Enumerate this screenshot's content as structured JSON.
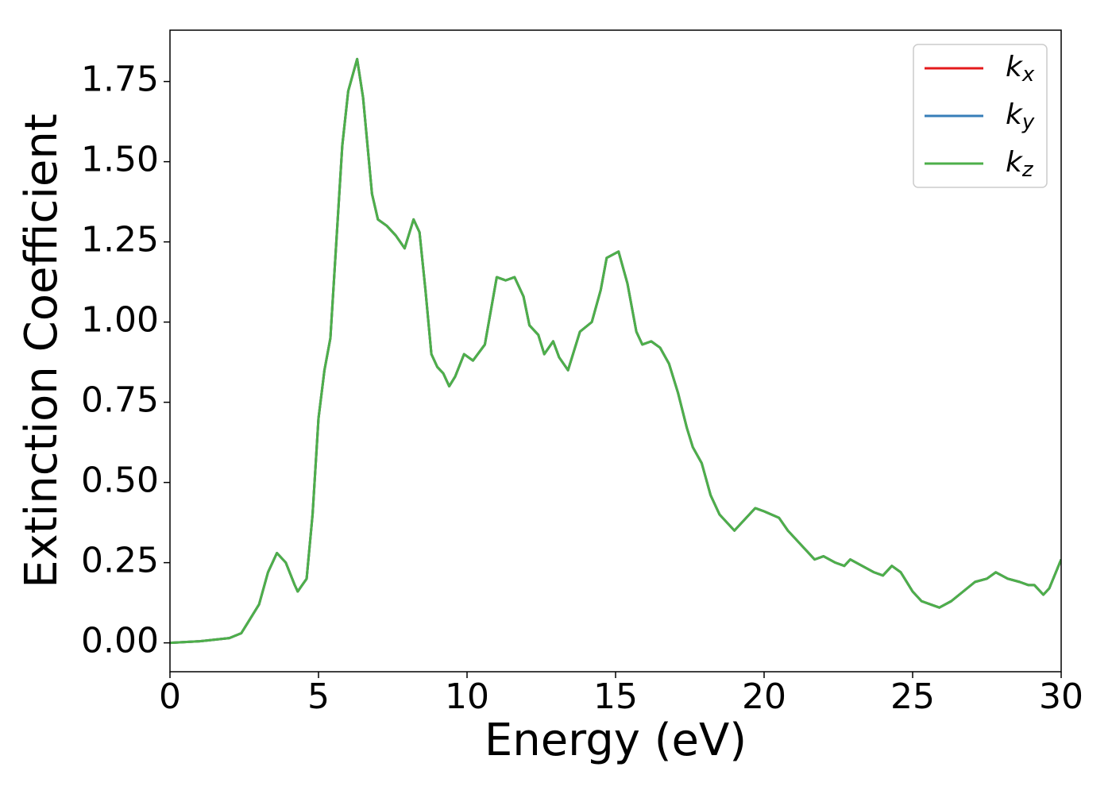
{
  "chart_data": {
    "type": "line",
    "xlabel": "Energy (eV)",
    "ylabel": "Extinction Coefficient",
    "x": [
      0,
      1,
      2,
      2.4,
      2.6,
      3,
      3.3,
      3.6,
      3.9,
      4.2,
      4.3,
      4.6,
      4.8,
      5,
      5.2,
      5.4,
      5.6,
      5.8,
      6.0,
      6.3,
      6.5,
      6.8,
      7.0,
      7.3,
      7.6,
      7.9,
      8.2,
      8.4,
      8.6,
      8.8,
      9.0,
      9.2,
      9.4,
      9.6,
      9.9,
      10.2,
      10.6,
      11.0,
      11.3,
      11.6,
      11.9,
      12.1,
      12.4,
      12.6,
      12.9,
      13.1,
      13.4,
      13.8,
      14.2,
      14.5,
      14.7,
      14.9,
      15.1,
      15.4,
      15.7,
      15.9,
      16.2,
      16.5,
      16.8,
      17.1,
      17.4,
      17.6,
      17.9,
      18.2,
      18.5,
      18.8,
      19.0,
      19.3,
      19.7,
      20.0,
      20.5,
      20.8,
      21.1,
      21.4,
      21.7,
      22.0,
      22.4,
      22.7,
      22.9,
      23.3,
      23.7,
      24.0,
      24.3,
      24.6,
      25.0,
      25.3,
      25.6,
      25.9,
      26.3,
      26.7,
      27.1,
      27.5,
      27.8,
      28.2,
      28.6,
      28.9,
      29.1,
      29.4,
      29.6,
      30.0
    ],
    "series": [
      {
        "name": "kx",
        "color": "#e41a1c",
        "values": [
          0,
          0.005,
          0.015,
          0.03,
          0.06,
          0.12,
          0.22,
          0.28,
          0.25,
          0.18,
          0.16,
          0.2,
          0.4,
          0.7,
          0.85,
          0.95,
          1.25,
          1.55,
          1.72,
          1.82,
          1.7,
          1.4,
          1.32,
          1.3,
          1.27,
          1.23,
          1.32,
          1.28,
          1.1,
          0.9,
          0.86,
          0.84,
          0.8,
          0.83,
          0.9,
          0.88,
          0.93,
          1.14,
          1.13,
          1.14,
          1.08,
          0.99,
          0.96,
          0.9,
          0.94,
          0.89,
          0.85,
          0.97,
          1.0,
          1.1,
          1.2,
          1.21,
          1.22,
          1.12,
          0.97,
          0.93,
          0.94,
          0.92,
          0.87,
          0.78,
          0.67,
          0.61,
          0.56,
          0.46,
          0.4,
          0.37,
          0.35,
          0.38,
          0.42,
          0.41,
          0.39,
          0.35,
          0.32,
          0.29,
          0.26,
          0.27,
          0.25,
          0.24,
          0.26,
          0.24,
          0.22,
          0.21,
          0.24,
          0.22,
          0.16,
          0.13,
          0.12,
          0.11,
          0.13,
          0.16,
          0.19,
          0.2,
          0.22,
          0.2,
          0.19,
          0.18,
          0.18,
          0.15,
          0.17,
          0.26
        ]
      },
      {
        "name": "ky",
        "color": "#377eb8",
        "values": [
          0,
          0.005,
          0.015,
          0.03,
          0.06,
          0.12,
          0.22,
          0.28,
          0.25,
          0.18,
          0.16,
          0.2,
          0.4,
          0.7,
          0.85,
          0.95,
          1.25,
          1.55,
          1.72,
          1.82,
          1.7,
          1.4,
          1.32,
          1.3,
          1.27,
          1.23,
          1.32,
          1.28,
          1.1,
          0.9,
          0.86,
          0.84,
          0.8,
          0.83,
          0.9,
          0.88,
          0.93,
          1.14,
          1.13,
          1.14,
          1.08,
          0.99,
          0.96,
          0.9,
          0.94,
          0.89,
          0.85,
          0.97,
          1.0,
          1.1,
          1.2,
          1.21,
          1.22,
          1.12,
          0.97,
          0.93,
          0.94,
          0.92,
          0.87,
          0.78,
          0.67,
          0.61,
          0.56,
          0.46,
          0.4,
          0.37,
          0.35,
          0.38,
          0.42,
          0.41,
          0.39,
          0.35,
          0.32,
          0.29,
          0.26,
          0.27,
          0.25,
          0.24,
          0.26,
          0.24,
          0.22,
          0.21,
          0.24,
          0.22,
          0.16,
          0.13,
          0.12,
          0.11,
          0.13,
          0.16,
          0.19,
          0.2,
          0.22,
          0.2,
          0.19,
          0.18,
          0.18,
          0.15,
          0.17,
          0.26
        ]
      },
      {
        "name": "kz",
        "color": "#4daf4a",
        "values": [
          0,
          0.005,
          0.015,
          0.03,
          0.06,
          0.12,
          0.22,
          0.28,
          0.25,
          0.18,
          0.16,
          0.2,
          0.4,
          0.7,
          0.85,
          0.95,
          1.25,
          1.55,
          1.72,
          1.82,
          1.7,
          1.4,
          1.32,
          1.3,
          1.27,
          1.23,
          1.32,
          1.28,
          1.1,
          0.9,
          0.86,
          0.84,
          0.8,
          0.83,
          0.9,
          0.88,
          0.93,
          1.14,
          1.13,
          1.14,
          1.08,
          0.99,
          0.96,
          0.9,
          0.94,
          0.89,
          0.85,
          0.97,
          1.0,
          1.1,
          1.2,
          1.21,
          1.22,
          1.12,
          0.97,
          0.93,
          0.94,
          0.92,
          0.87,
          0.78,
          0.67,
          0.61,
          0.56,
          0.46,
          0.4,
          0.37,
          0.35,
          0.38,
          0.42,
          0.41,
          0.39,
          0.35,
          0.32,
          0.29,
          0.26,
          0.27,
          0.25,
          0.24,
          0.26,
          0.24,
          0.22,
          0.21,
          0.24,
          0.22,
          0.16,
          0.13,
          0.12,
          0.11,
          0.13,
          0.16,
          0.19,
          0.2,
          0.22,
          0.2,
          0.19,
          0.18,
          0.18,
          0.15,
          0.17,
          0.26
        ]
      }
    ],
    "xlim": [
      0,
      30
    ],
    "xticks": [
      0,
      5,
      10,
      15,
      20,
      25,
      30
    ],
    "ylim": [
      -0.09,
      1.91
    ],
    "yticks": [
      {
        "value": 0,
        "label": "0.00"
      },
      {
        "value": 0.25,
        "label": "0.25"
      },
      {
        "value": 0.5,
        "label": "0.50"
      },
      {
        "value": 0.75,
        "label": "0.75"
      },
      {
        "value": 1,
        "label": "1.00"
      },
      {
        "value": 1.25,
        "label": "1.25"
      },
      {
        "value": 1.5,
        "label": "1.50"
      },
      {
        "value": 1.75,
        "label": "1.75"
      }
    ],
    "legend": "upper right"
  }
}
